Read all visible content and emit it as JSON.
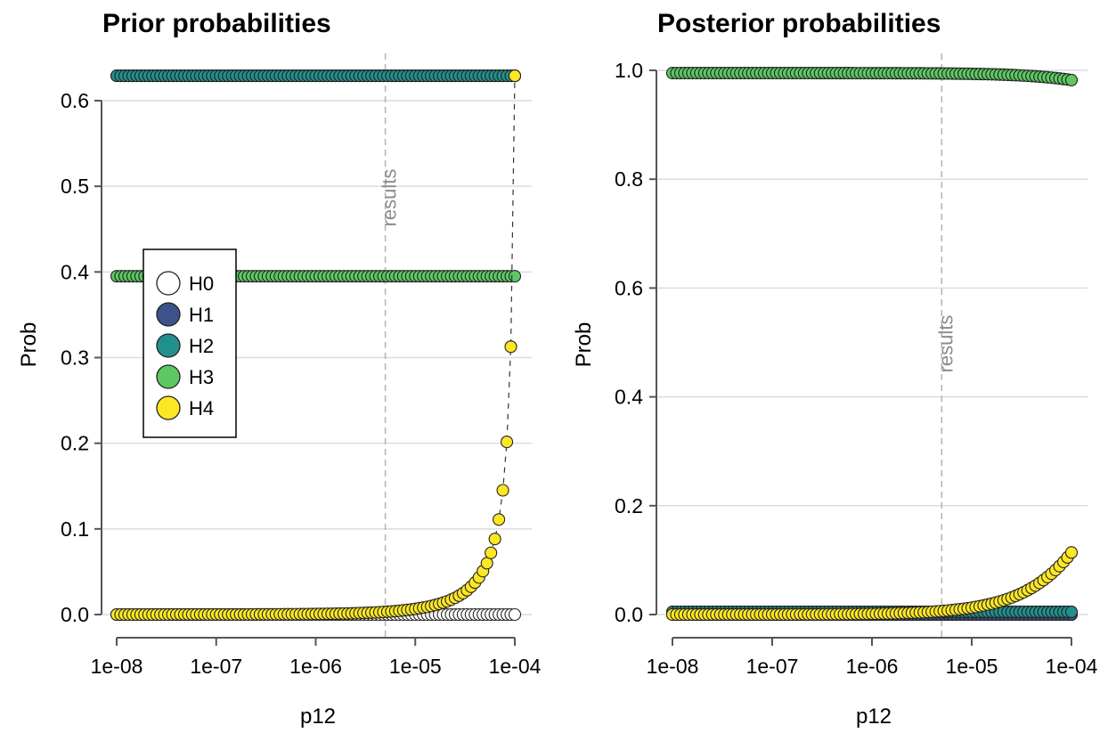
{
  "chart_data": [
    {
      "type": "scatter",
      "title": "Prior probabilities",
      "xlabel": "p12",
      "ylabel": "Prob",
      "x_scale": "log10",
      "xlim": [
        1e-08,
        0.0001
      ],
      "ylim": [
        0,
        0.63
      ],
      "x_ticks": [
        "1e-08",
        "1e-07",
        "1e-06",
        "1e-05",
        "1e-04"
      ],
      "y_ticks": [
        "0.0",
        "0.1",
        "0.2",
        "0.3",
        "0.4",
        "0.5",
        "0.6"
      ],
      "grid": "horizontal",
      "vline": {
        "x": 5e-06,
        "label": "results"
      },
      "legend": {
        "position": "left",
        "entries": [
          "H0",
          "H1",
          "H2",
          "H3",
          "H4"
        ]
      },
      "series": [
        {
          "name": "H0",
          "color": "#ffffff",
          "shape": "constant",
          "value": 0.0
        },
        {
          "name": "H1",
          "color": "#3b528b",
          "shape": "constant",
          "value": 0.629
        },
        {
          "name": "H2",
          "color": "#21908d",
          "shape": "constant",
          "value": 0.629
        },
        {
          "name": "H3",
          "color": "#5dc863",
          "shape": "constant",
          "value": 0.395
        },
        {
          "name": "H4",
          "color": "#fde725",
          "shape": "logistic",
          "value_at_xmin": 6e-06,
          "value_at_xmax": 0.629
        }
      ]
    },
    {
      "type": "scatter",
      "title": "Posterior probabilities",
      "xlabel": "p12",
      "ylabel": "Prob",
      "x_scale": "log10",
      "xlim": [
        1e-08,
        0.0001
      ],
      "ylim": [
        0,
        1.0
      ],
      "x_ticks": [
        "1e-08",
        "1e-07",
        "1e-06",
        "1e-05",
        "1e-04"
      ],
      "y_ticks": [
        "0.0",
        "0.2",
        "0.4",
        "0.6",
        "0.8",
        "1.0"
      ],
      "grid": "horizontal",
      "vline": {
        "x": 5e-06,
        "label": "results"
      },
      "series": [
        {
          "name": "H0",
          "color": "#ffffff",
          "shape": "constant",
          "value": 0.0
        },
        {
          "name": "H1",
          "color": "#3b528b",
          "shape": "constant",
          "value": 0.0
        },
        {
          "name": "H2",
          "color": "#21908d",
          "shape": "constant",
          "value": 0.005
        },
        {
          "name": "H3",
          "color": "#5dc863",
          "shape": "complement",
          "value_at_xmin": 0.995,
          "value_at_xmax": 0.882
        },
        {
          "name": "H4",
          "color": "#fde725",
          "shape": "ratio",
          "value_at_xmin": 0.0001,
          "value_at_xmax": 0.114
        }
      ]
    }
  ]
}
